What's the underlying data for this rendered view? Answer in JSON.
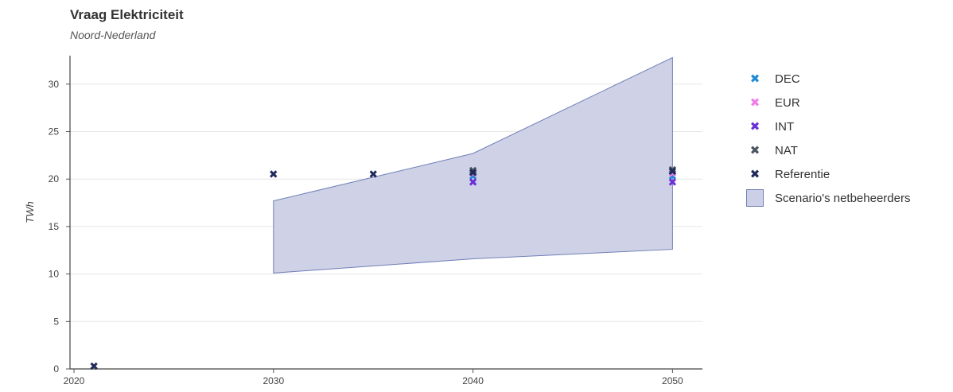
{
  "chart_data": {
    "type": "scatter",
    "title": "Vraag Elektriciteit",
    "subtitle": "Noord-Nederland",
    "xlabel": "",
    "ylabel": "TWh",
    "xlim": [
      2019.8,
      2051.5
    ],
    "ylim": [
      0,
      33
    ],
    "x_ticks": [
      2020,
      2030,
      2040,
      2050
    ],
    "y_ticks": [
      0,
      5,
      10,
      15,
      20,
      25,
      30
    ],
    "grid": true,
    "legend_position": "right",
    "marker_symbol": "✖",
    "series": [
      {
        "name": "DEC",
        "color": "#1f8bd6",
        "points": [
          {
            "x": 2040,
            "y": 20.3
          },
          {
            "x": 2050,
            "y": 20.3
          }
        ]
      },
      {
        "name": "EUR",
        "color": "#f07ee8",
        "points": [
          {
            "x": 2040,
            "y": 20.6
          },
          {
            "x": 2050,
            "y": 20.6
          }
        ]
      },
      {
        "name": "INT",
        "color": "#6b2fd6",
        "points": [
          {
            "x": 2040,
            "y": 19.7
          },
          {
            "x": 2050,
            "y": 19.7
          }
        ]
      },
      {
        "name": "NAT",
        "color": "#4a5560",
        "points": [
          {
            "x": 2040,
            "y": 20.9
          },
          {
            "x": 2050,
            "y": 21.0
          }
        ]
      },
      {
        "name": "Referentie",
        "color": "#1e2a5a",
        "points": [
          {
            "x": 2021,
            "y": 0.3
          },
          {
            "x": 2030,
            "y": 20.5
          },
          {
            "x": 2035,
            "y": 20.5
          },
          {
            "x": 2040,
            "y": 20.7
          },
          {
            "x": 2050,
            "y": 20.8
          }
        ]
      }
    ],
    "band": {
      "name": "Scenario's netbeheerders",
      "fill": "#ccd0e6",
      "stroke": "#6f7fb6",
      "x": [
        2030,
        2040,
        2050
      ],
      "low": [
        10.1,
        11.6,
        12.6
      ],
      "high": [
        17.7,
        22.7,
        32.8
      ]
    }
  }
}
